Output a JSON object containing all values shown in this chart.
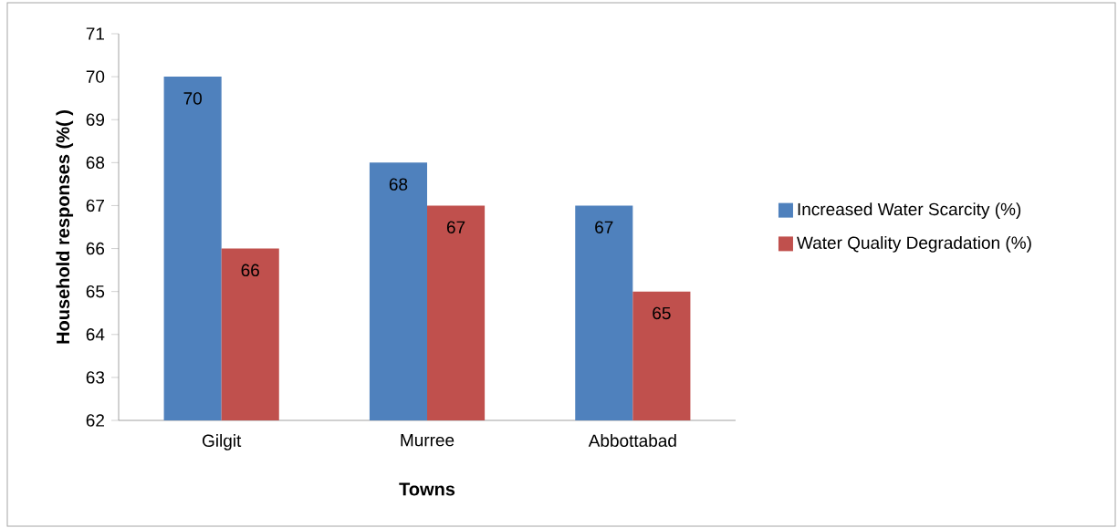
{
  "chart_data": {
    "type": "bar",
    "xlabel": "Towns",
    "ylabel": "Household responses  (%( )",
    "categories": [
      "Gilgit",
      "Murree",
      "Abbottabad"
    ],
    "series": [
      {
        "name": "Increased Water Scarcity (%)",
        "color": "#4f81bd",
        "values": [
          70,
          68,
          67
        ]
      },
      {
        "name": "Water Quality Degradation (%)",
        "color": "#c0504d",
        "values": [
          66,
          67,
          65
        ]
      }
    ],
    "ylim": [
      62,
      71
    ],
    "yticks": [
      62,
      63,
      64,
      65,
      66,
      67,
      68,
      69,
      70,
      71
    ],
    "data_labels": true,
    "legend": "right",
    "grid": false
  }
}
